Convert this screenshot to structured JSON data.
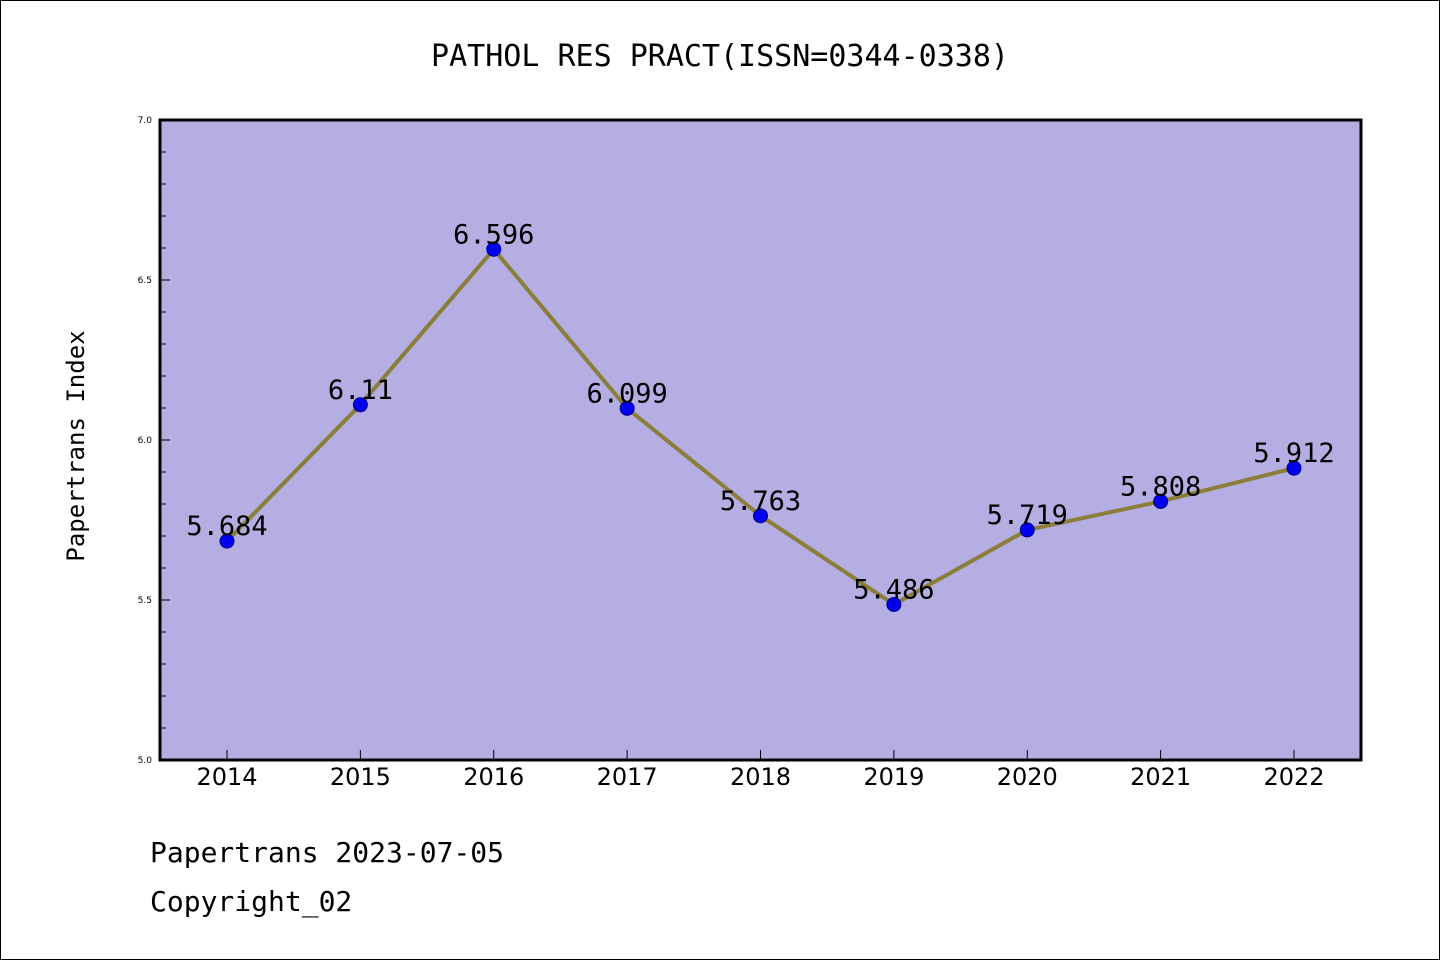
{
  "chart_data": {
    "type": "line",
    "title": "PATHOL RES PRACT(ISSN=0344-0338)",
    "xlabel": "",
    "ylabel": "Papertrans Index",
    "categories": [
      "2014",
      "2015",
      "2016",
      "2017",
      "2018",
      "2019",
      "2020",
      "2021",
      "2022"
    ],
    "values": [
      5.684,
      6.11,
      6.596,
      6.099,
      5.763,
      5.486,
      5.719,
      5.808,
      5.912
    ],
    "data_labels": [
      "5.684",
      "6.11",
      "6.596",
      "6.099",
      "5.763",
      "5.486",
      "5.719",
      "5.808",
      "5.912"
    ],
    "ylim": [
      5.0,
      7.0
    ],
    "yticks": [
      "5.0",
      "5.5",
      "6.0",
      "6.5",
      "7.0"
    ],
    "grid": false,
    "colors": {
      "plot_background": "#b5aee2",
      "line": "#8b7d3a",
      "marker": "#0000ee",
      "marker_edge": "#00008b"
    }
  },
  "footer": {
    "date_line": "Papertrans 2023-07-05",
    "copyright_line": "Copyright_02"
  }
}
